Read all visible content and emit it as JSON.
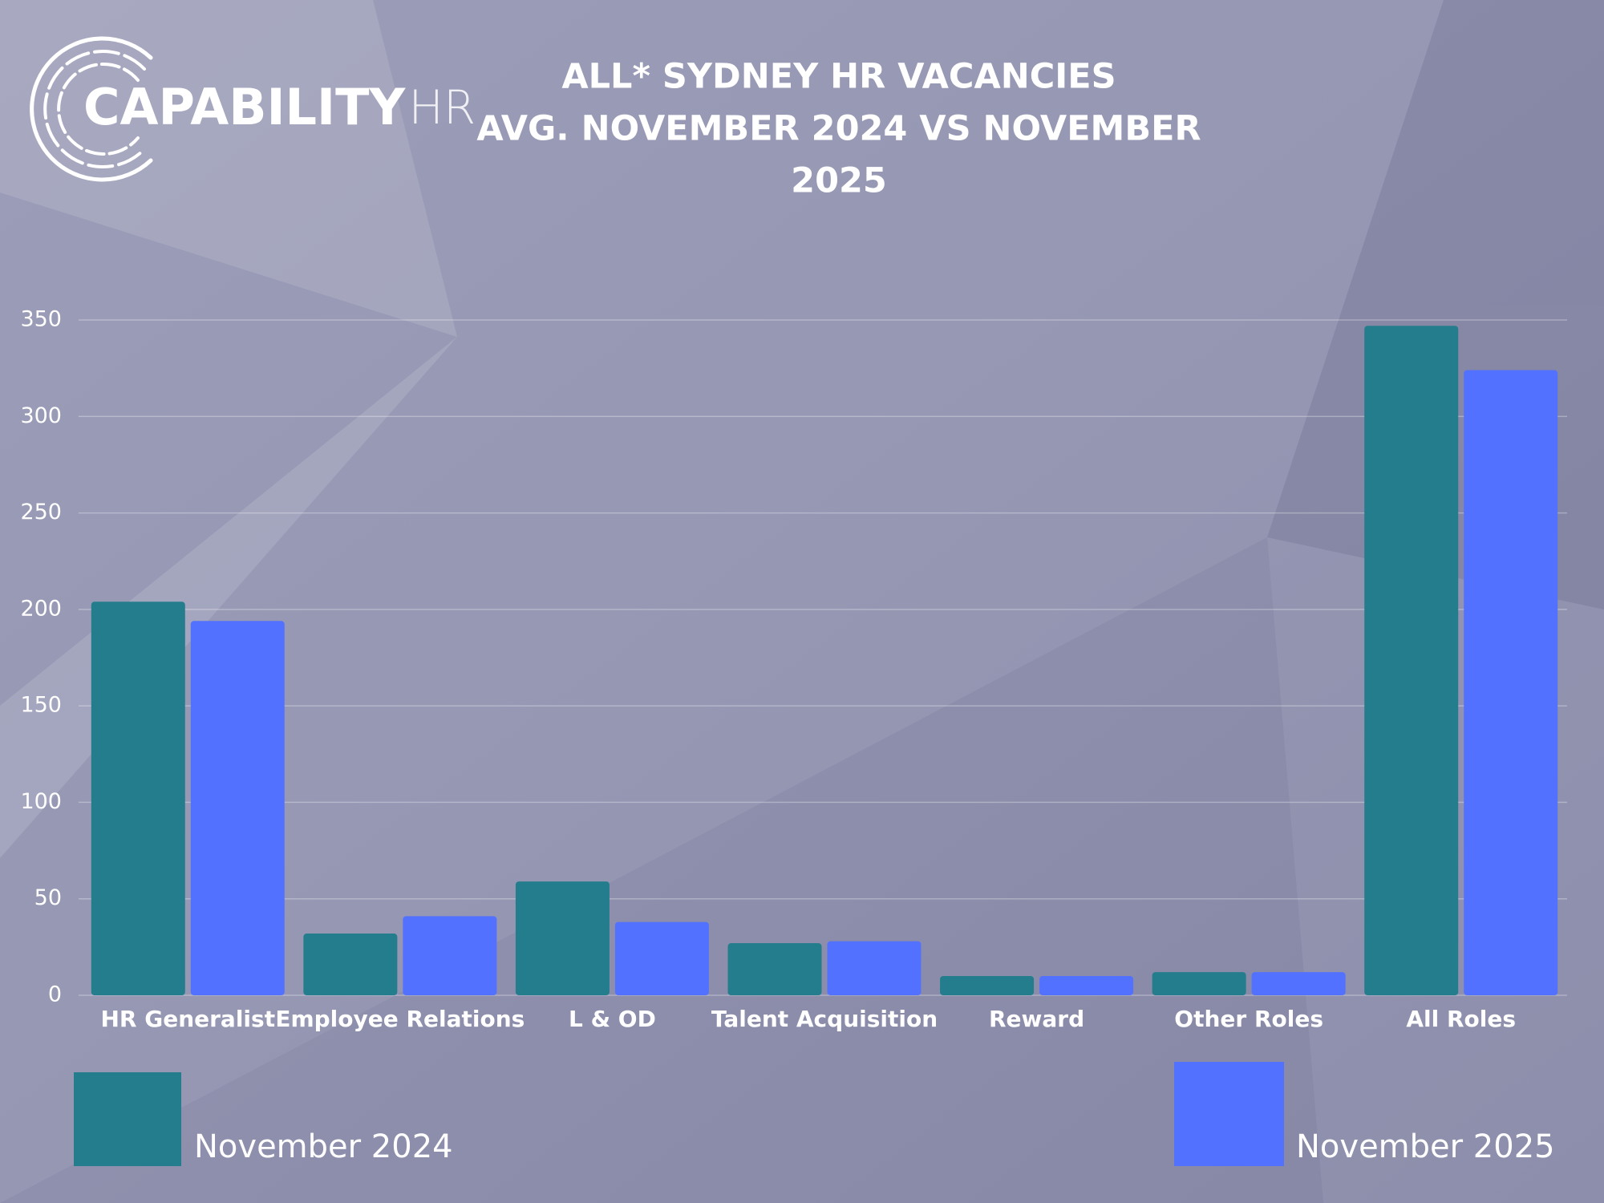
{
  "logo": {
    "brand": "CAPABILITY",
    "suffix": "HR"
  },
  "chart_data": {
    "type": "bar",
    "title_lines": [
      "ALL* SYDNEY HR VACANCIES",
      "AVG. NOVEMBER 2024 VS NOVEMBER",
      "2025"
    ],
    "categories": [
      "HR Generalist",
      "Employee Relations",
      "L & OD",
      "Talent Acquisition",
      "Reward",
      "Other Roles",
      "All Roles"
    ],
    "series": [
      {
        "name": "November 2024",
        "color": "#237d8c",
        "values": [
          204,
          32,
          59,
          27,
          10,
          12,
          347
        ]
      },
      {
        "name": "November 2025",
        "color": "#5371ff",
        "values": [
          194,
          41,
          38,
          28,
          10,
          12,
          324
        ]
      }
    ],
    "ylim": [
      0,
      350
    ],
    "yticks": [
      0,
      50,
      100,
      150,
      200,
      250,
      300,
      350
    ],
    "grid": true
  }
}
